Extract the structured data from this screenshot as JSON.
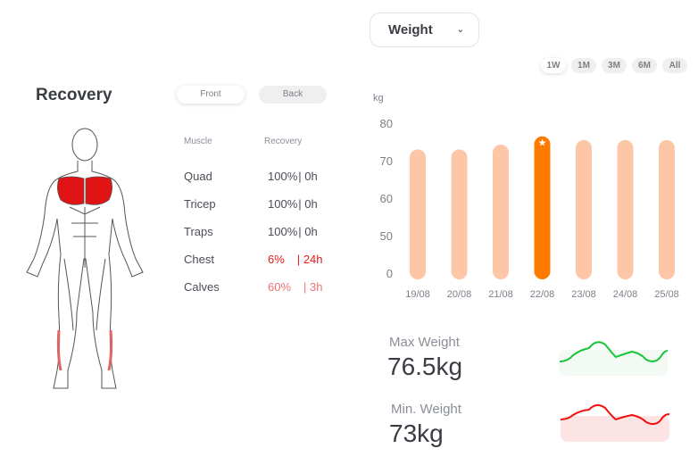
{
  "recovery": {
    "title": "Recovery",
    "view_front": "Front",
    "view_back": "Back",
    "col_muscle": "Muscle",
    "col_recovery": "Recovery",
    "muscles": [
      {
        "name": "Quad",
        "pct": "100%",
        "sep": "|",
        "time": "0h",
        "color": "#4a4d55"
      },
      {
        "name": "Tricep",
        "pct": "100%",
        "sep": "|",
        "time": "0h",
        "color": "#4a4d55"
      },
      {
        "name": "Traps",
        "pct": "100%",
        "sep": "|",
        "time": "0h",
        "color": "#4a4d55"
      },
      {
        "name": "Chest",
        "pct": "6%",
        "sep": "|",
        "time": "24h",
        "color": "#e81c1c"
      },
      {
        "name": "Calves",
        "pct": "60%",
        "sep": "|",
        "time": "3h",
        "color": "#f07070"
      }
    ]
  },
  "metric_select": {
    "value": "Weight"
  },
  "ranges": [
    "1W",
    "1M",
    "3M",
    "6M",
    "All"
  ],
  "active_range": "1W",
  "chart_data": {
    "type": "bar",
    "ylabel": "kg",
    "yticks": [
      0,
      50,
      60,
      70,
      80
    ],
    "categories": [
      "19/08",
      "20/08",
      "21/08",
      "22/08",
      "23/08",
      "24/08",
      "25/08"
    ],
    "values": [
      73,
      73,
      74.3,
      76.5,
      75.5,
      75.5,
      75.5
    ],
    "highlight_index": 3,
    "bar_color": "#fdc6a6",
    "highlight_color": "#ff7b00"
  },
  "stats": {
    "max_label": "Max Weight",
    "max_value": "76.5kg",
    "min_label": "Min. Weight",
    "min_value": "73kg",
    "max_color": "#19c43a",
    "min_color": "#f01010"
  }
}
